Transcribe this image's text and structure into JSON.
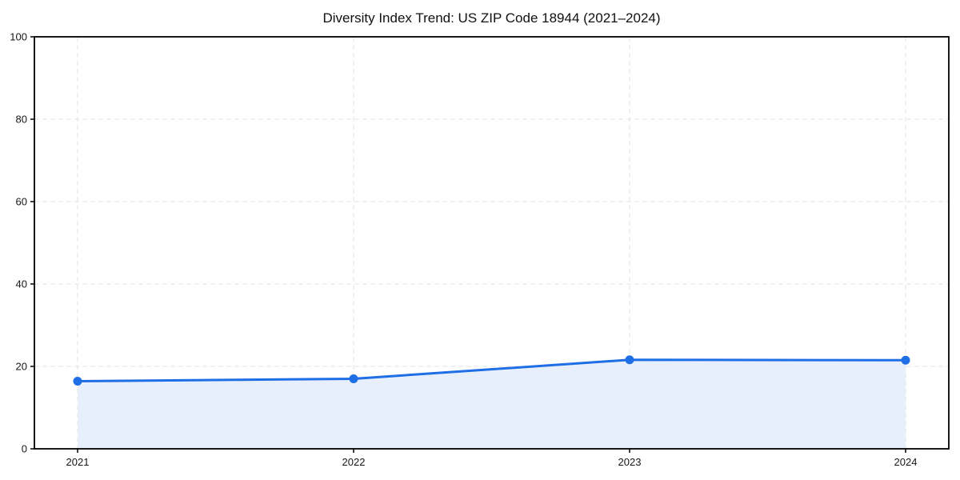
{
  "chart_data": {
    "type": "area",
    "title": "Diversity Index Trend: US ZIP Code 18944 (2021–2024)",
    "x": [
      2021,
      2022,
      2023,
      2024
    ],
    "xtick_labels": [
      "2021",
      "2022",
      "2023",
      "2024"
    ],
    "series": [
      {
        "name": "Diversity Index",
        "values": [
          16.4,
          17.0,
          21.6,
          21.5
        ]
      }
    ],
    "xlabel": "",
    "ylabel": "",
    "ylim": [
      0,
      100
    ],
    "yticks": [
      0,
      20,
      40,
      60,
      80,
      100
    ],
    "grid": true,
    "grid_style": "dashed",
    "legend_position": "none",
    "marker": "circle",
    "colors": {
      "line": "#1e6ee6",
      "marker": "#1e6ee6",
      "fill": "#e7effc",
      "grid": "#e3e3e3",
      "spine": "#000000",
      "text": "#161616"
    }
  }
}
